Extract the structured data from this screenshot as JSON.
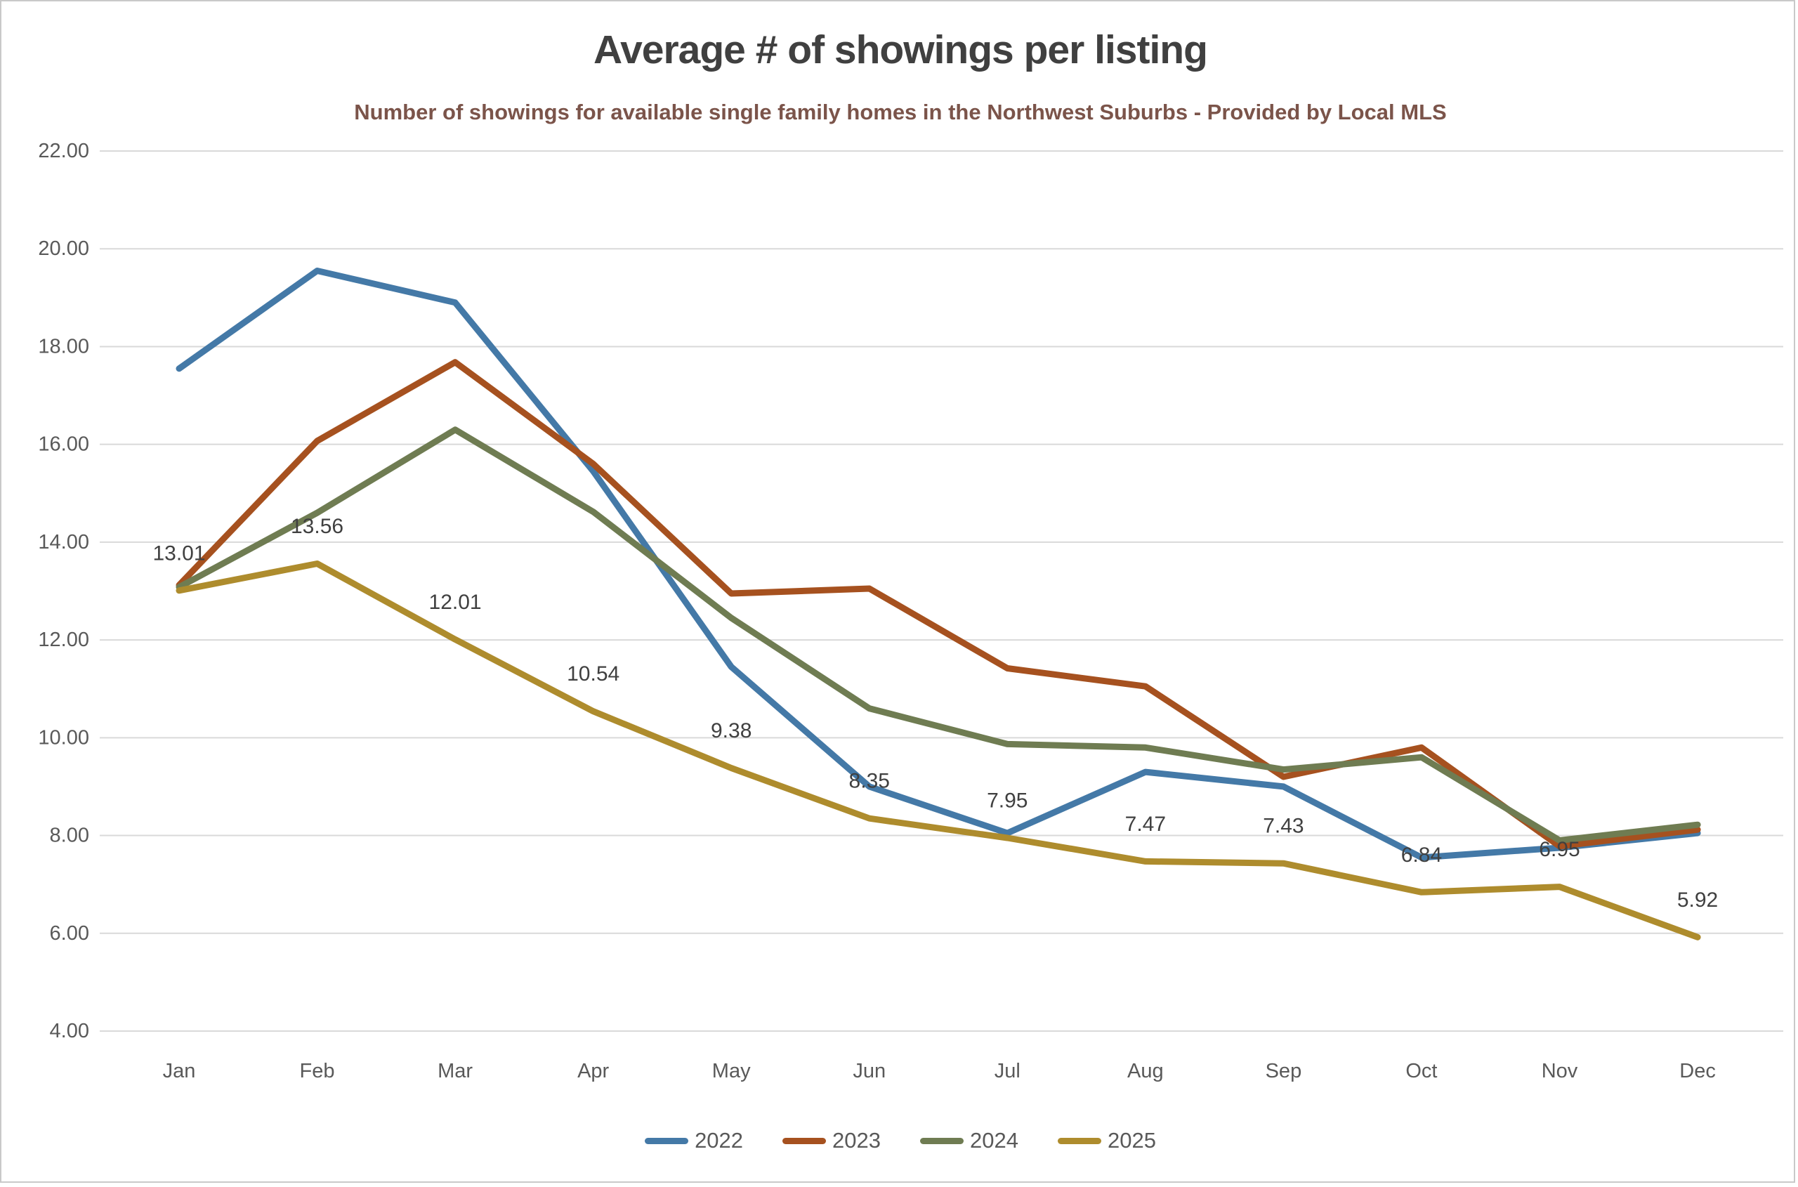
{
  "header": {
    "title": "Average # of showings per listing",
    "subtitle": "Number of showings for available single family homes in the Northwest Suburbs - Provided by Local MLS"
  },
  "colors": {
    "background": "#FFFFFF",
    "border": "#C9C9C9",
    "gridline": "#D9D9D9",
    "axis_text": "#595959",
    "title_text": "#404040",
    "subtitle_text": "#7B544A",
    "data_label_text": "#404040",
    "series_2022": "#4479A7",
    "series_2023": "#A6511F",
    "series_2024": "#6F7C52",
    "series_2025": "#AE8C2D"
  },
  "y_axis": {
    "ticks": [
      "22.00",
      "20.00",
      "18.00",
      "16.00",
      "14.00",
      "12.00",
      "10.00",
      "8.00",
      "6.00",
      "4.00"
    ],
    "max": 22,
    "min": 4,
    "step": 2
  },
  "chart_data": {
    "type": "line",
    "title": "Average # of showings per listing",
    "subtitle": "Number of showings for available single family homes in the Northwest Suburbs - Provided by Local MLS",
    "categories": [
      "Jan",
      "Feb",
      "Mar",
      "Apr",
      "May",
      "Jun",
      "Jul",
      "Aug",
      "Sep",
      "Oct",
      "Nov",
      "Dec"
    ],
    "series": [
      {
        "name": "2022",
        "color": "#4479A7",
        "values": [
          17.55,
          19.55,
          18.9,
          15.45,
          11.45,
          9.0,
          8.05,
          9.3,
          9.0,
          7.55,
          7.75,
          8.05
        ]
      },
      {
        "name": "2023",
        "color": "#A6511F",
        "values": [
          13.12,
          16.07,
          17.68,
          15.6,
          12.95,
          13.05,
          11.42,
          11.05,
          9.2,
          9.8,
          7.78,
          8.12
        ]
      },
      {
        "name": "2024",
        "color": "#6F7C52",
        "values": [
          13.08,
          14.6,
          16.3,
          14.62,
          12.45,
          10.6,
          9.87,
          9.8,
          9.35,
          9.6,
          7.9,
          8.22
        ]
      },
      {
        "name": "2025",
        "color": "#AE8C2D",
        "values": [
          13.01,
          13.56,
          12.01,
          10.54,
          9.38,
          8.35,
          7.95,
          7.47,
          7.43,
          6.84,
          6.95,
          5.92
        ],
        "data_labels": [
          "13.01",
          "13.56",
          "12.01",
          "10.54",
          "9.38",
          "8.35",
          "7.95",
          "7.47",
          "7.43",
          "6.84",
          "6.95",
          "5.92"
        ]
      }
    ],
    "ylim": [
      4,
      22
    ],
    "grid": "horizontal-only",
    "legend_position": "bottom"
  },
  "legend": {
    "items": [
      {
        "label": "2022",
        "color": "#4479A7"
      },
      {
        "label": "2023",
        "color": "#A6511F"
      },
      {
        "label": "2024",
        "color": "#6F7C52"
      },
      {
        "label": "2025",
        "color": "#AE8C2D"
      }
    ]
  }
}
